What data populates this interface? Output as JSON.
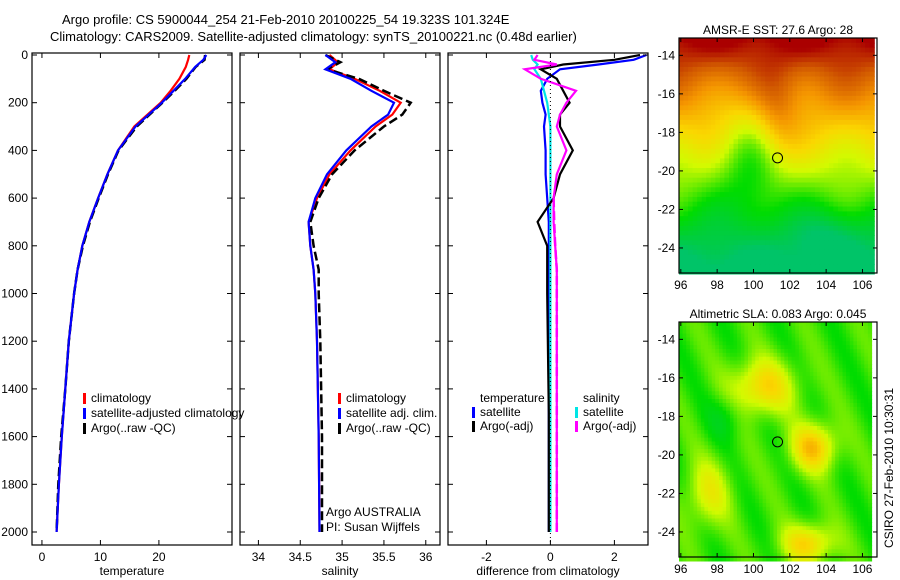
{
  "header": {
    "line1": "Argo profile: CS 5900044_254 21-Feb-2010 20100225_54 19.323S 101.324E",
    "line2": "Climatology: CARS2009. Satellite-adjusted climatology: synTS_20100221.nc (0.48d earlier)"
  },
  "side_label": "CSIRO 27-Feb-2010 10:30:31",
  "credit": {
    "line1": "Argo AUSTRALIA",
    "line2": "PI: Susan Wijffels"
  },
  "chart_data": [
    {
      "type": "line",
      "xlabel": "temperature",
      "xlim": [
        -1.7,
        32.5
      ],
      "xticks": [
        0,
        10,
        20
      ],
      "ylim": [
        0,
        2050
      ],
      "yticks": [
        0,
        200,
        400,
        600,
        800,
        1000,
        1200,
        1400,
        1600,
        1800,
        2000
      ],
      "y_reversed": true,
      "legend": [
        "climatology",
        "satellite-adjusted climatology",
        "Argo(..raw -QC)"
      ],
      "depth": [
        0,
        20,
        50,
        100,
        150,
        200,
        300,
        400,
        500,
        600,
        700,
        800,
        900,
        1000,
        1200,
        1400,
        1600,
        1800,
        2000
      ],
      "series": [
        {
          "name": "climatology",
          "color": "#ff0000",
          "dash": false,
          "values": [
            25.2,
            25,
            24.6,
            23.5,
            22,
            20.3,
            15.8,
            13,
            11.2,
            9.6,
            8.1,
            6.9,
            6.1,
            5.5,
            4.6,
            4,
            3.4,
            2.9,
            2.5
          ]
        },
        {
          "name": "Argo(..raw -QC)",
          "color": "#000000",
          "dash": true,
          "values": [
            27.9,
            27.8,
            26.3,
            24.7,
            22.7,
            20.6,
            16.2,
            13.1,
            11.3,
            9.7,
            8.2,
            7,
            6.1,
            5.5,
            4.6,
            4,
            3.3,
            2.8,
            2.5
          ]
        },
        {
          "name": "satellite-adjusted climatology",
          "color": "#0000ff",
          "dash": false,
          "values": [
            28.1,
            27.6,
            26.2,
            24.5,
            22.5,
            20.5,
            16,
            13,
            11.2,
            9.6,
            8.1,
            6.9,
            6.1,
            5.5,
            4.6,
            4,
            3.4,
            2.9,
            2.5
          ]
        }
      ]
    },
    {
      "type": "line",
      "xlabel": "salinity",
      "xlim": [
        33.78,
        36.17
      ],
      "xticks": [
        34,
        34.5,
        35,
        35.5,
        36
      ],
      "ylim": [
        0,
        2050
      ],
      "y_reversed": true,
      "legend": [
        "climatology",
        "satellite adj. clim.",
        "Argo(..raw -QC)"
      ],
      "depth": [
        0,
        30,
        60,
        100,
        150,
        200,
        250,
        300,
        400,
        500,
        600,
        700,
        800,
        900,
        1000,
        1200,
        1600,
        2000
      ],
      "series": [
        {
          "name": "climatology",
          "color": "#ff0000",
          "dash": false,
          "values": [
            34.85,
            34.95,
            34.85,
            35.15,
            35.45,
            35.7,
            35.6,
            35.4,
            35.1,
            34.85,
            34.7,
            34.6,
            34.62,
            34.66,
            34.68,
            34.7,
            34.72,
            34.73
          ]
        },
        {
          "name": "Argo(..raw -QC)",
          "color": "#000000",
          "dash": true,
          "values": [
            34.8,
            34.98,
            34.82,
            35.2,
            35.5,
            35.82,
            35.72,
            35.5,
            35.15,
            34.88,
            34.72,
            34.62,
            34.66,
            34.72,
            34.72,
            34.74,
            34.76,
            34.76
          ]
        },
        {
          "name": "satellite adj. clim.",
          "color": "#0000ff",
          "dash": false,
          "values": [
            34.8,
            34.92,
            34.8,
            35.1,
            35.35,
            35.62,
            35.55,
            35.35,
            35.05,
            34.82,
            34.68,
            34.6,
            34.62,
            34.66,
            34.68,
            34.7,
            34.72,
            34.73
          ]
        }
      ]
    },
    {
      "type": "line",
      "xlabel": "difference from climatology",
      "xlim": [
        -3.2,
        3.05
      ],
      "xticks": [
        -2,
        0,
        2
      ],
      "ylim": [
        0,
        2050
      ],
      "y_reversed": true,
      "legend_groups": [
        {
          "title": "temperature",
          "items": [
            "satellite",
            "Argo(-adj)"
          ]
        },
        {
          "title": "salinity",
          "items": [
            "satellite",
            "Argo(-adj)"
          ]
        }
      ],
      "depth": [
        0,
        20,
        40,
        60,
        100,
        150,
        200,
        250,
        300,
        400,
        500,
        600,
        700,
        800,
        900,
        1000,
        1500,
        2000
      ],
      "series": [
        {
          "name": "temperature satellite",
          "color": "#0000ff",
          "dash": false,
          "values": [
            3,
            2.6,
            1.5,
            0.3,
            -0.1,
            -0.3,
            -0.25,
            -0.15,
            -0.2,
            -0.15,
            -0.15,
            -0.1,
            -0.05,
            -0.05,
            -0.05,
            -0.05,
            -0.05,
            -0.05
          ]
        },
        {
          "name": "salinity satellite",
          "color": "#00e5e5",
          "dash": false,
          "values": [
            -0.6,
            -0.55,
            -0.4,
            -0.5,
            -0.3,
            -0.2,
            -0.1,
            -0.05,
            0,
            0,
            0,
            0,
            0,
            0,
            0,
            0,
            0,
            0
          ]
        },
        {
          "name": "temperature Argo(-adj)",
          "color": "#000000",
          "dash": false,
          "values": [
            2.8,
            2,
            0.4,
            -0.3,
            0.2,
            0.4,
            0.6,
            0.3,
            0.3,
            0.7,
            0.3,
            0.1,
            -0.4,
            -0.1,
            -0.1,
            -0.1,
            -0.05,
            -0.05
          ]
        },
        {
          "name": "salinity Argo(-adj)",
          "color": "#ff00ff",
          "dash": false,
          "values": [
            -0.4,
            -0.5,
            0.2,
            -0.8,
            -0.3,
            0.8,
            0.5,
            0.3,
            0.2,
            0.5,
            0.2,
            0.1,
            0.1,
            0.15,
            0.2,
            0.2,
            0.2,
            0.2
          ]
        },
        {
          "name": "salinity Argo(-adj) dashed",
          "color": "#ff00ff",
          "dash": true,
          "values": [
            null,
            null,
            null,
            null,
            null,
            null,
            null,
            null,
            null,
            null,
            null,
            0.1,
            0.12,
            0.15,
            0.2,
            0.2,
            0.2,
            0.2
          ]
        }
      ]
    },
    {
      "type": "heatmap",
      "title": "AMSR-E SST: 27.6 Argo: 28",
      "xlim": [
        95.9,
        106.8
      ],
      "ylim": [
        -25.3,
        -13.1
      ],
      "xticks": [
        96,
        98,
        100,
        102,
        104,
        106
      ],
      "yticks": [
        -14,
        -16,
        -18,
        -20,
        -22,
        -24
      ],
      "argo_position": {
        "lon": 101.324,
        "lat": -19.323
      },
      "satellite_value": 27.6,
      "argo_value": 28
    },
    {
      "type": "heatmap",
      "title": "Altimetric SLA: 0.083 Argo: 0.045",
      "xlim": [
        95.9,
        106.8
      ],
      "ylim": [
        -25.3,
        -13.1
      ],
      "xticks": [
        96,
        98,
        100,
        102,
        104,
        106
      ],
      "yticks": [
        -14,
        -16,
        -18,
        -20,
        -22,
        -24
      ],
      "argo_position": {
        "lon": 101.324,
        "lat": -19.323
      },
      "satellite_value": 0.083,
      "argo_value": 0.045
    }
  ]
}
